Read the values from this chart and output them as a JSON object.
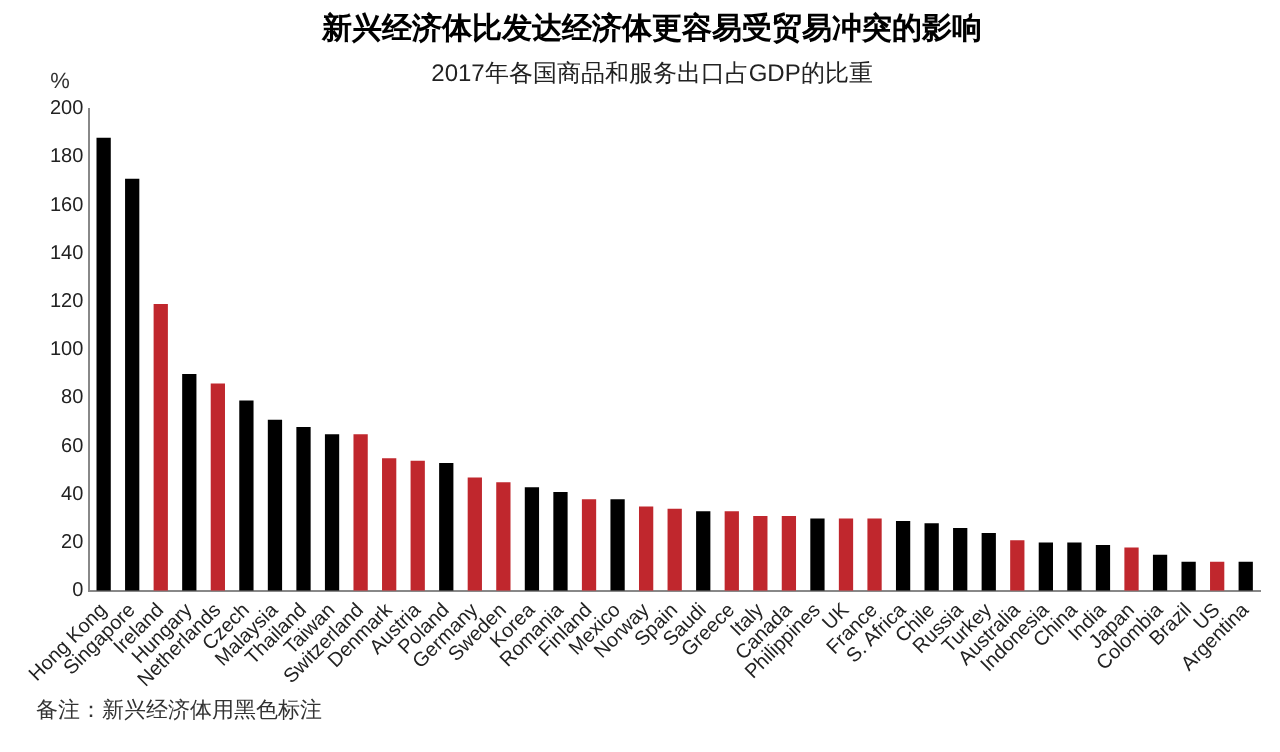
{
  "chart_data": {
    "type": "bar",
    "title": "新兴经济体比发达经济体更容易受贸易冲突的影响",
    "subtitle": "2017年各国商品和服务出口占GDP的比重",
    "ylabel": "%",
    "categories": [
      "Hong Kong",
      "Singapore",
      "Ireland",
      "Hungary",
      "Netherlands",
      "Czech",
      "Malaysia",
      "Thailand",
      "Taiwan",
      "Switzerland",
      "Denmark",
      "Austria",
      "Poland",
      "Germany",
      "Sweden",
      "Korea",
      "Romania",
      "Finland",
      "Mexico",
      "Norway",
      "Spain",
      "Saudi",
      "Greece",
      "Italy",
      "Canada",
      "Philippines",
      "UK",
      "France",
      "S. Africa",
      "Chile",
      "Russia",
      "Turkey",
      "Australia",
      "Indonesia",
      "China",
      "India",
      "Japan",
      "Colombia",
      "Brazil",
      "US",
      "Argentina"
    ],
    "values": [
      188,
      171,
      119,
      90,
      86,
      79,
      71,
      68,
      65,
      65,
      55,
      54,
      53,
      47,
      45,
      43,
      41,
      38,
      38,
      35,
      34,
      33,
      33,
      31,
      31,
      30,
      30,
      30,
      29,
      28,
      26,
      24,
      21,
      20,
      20,
      19,
      18,
      15,
      12,
      12,
      12
    ],
    "colors": [
      "#000000",
      "#000000",
      "#c0272d",
      "#000000",
      "#c0272d",
      "#000000",
      "#000000",
      "#000000",
      "#000000",
      "#c0272d",
      "#c0272d",
      "#c0272d",
      "#000000",
      "#c0272d",
      "#c0272d",
      "#000000",
      "#000000",
      "#c0272d",
      "#000000",
      "#c0272d",
      "#c0272d",
      "#000000",
      "#c0272d",
      "#c0272d",
      "#c0272d",
      "#000000",
      "#c0272d",
      "#c0272d",
      "#000000",
      "#000000",
      "#000000",
      "#000000",
      "#c0272d",
      "#000000",
      "#000000",
      "#000000",
      "#c0272d",
      "#000000",
      "#000000",
      "#c0272d",
      "#000000"
    ],
    "ylim": [
      0,
      200
    ],
    "yticks": [
      0,
      20,
      40,
      60,
      80,
      100,
      120,
      140,
      160,
      180,
      200
    ],
    "grid": false,
    "legend": false,
    "annotations": [
      "备注：新兴经济体用黑色标注"
    ]
  }
}
